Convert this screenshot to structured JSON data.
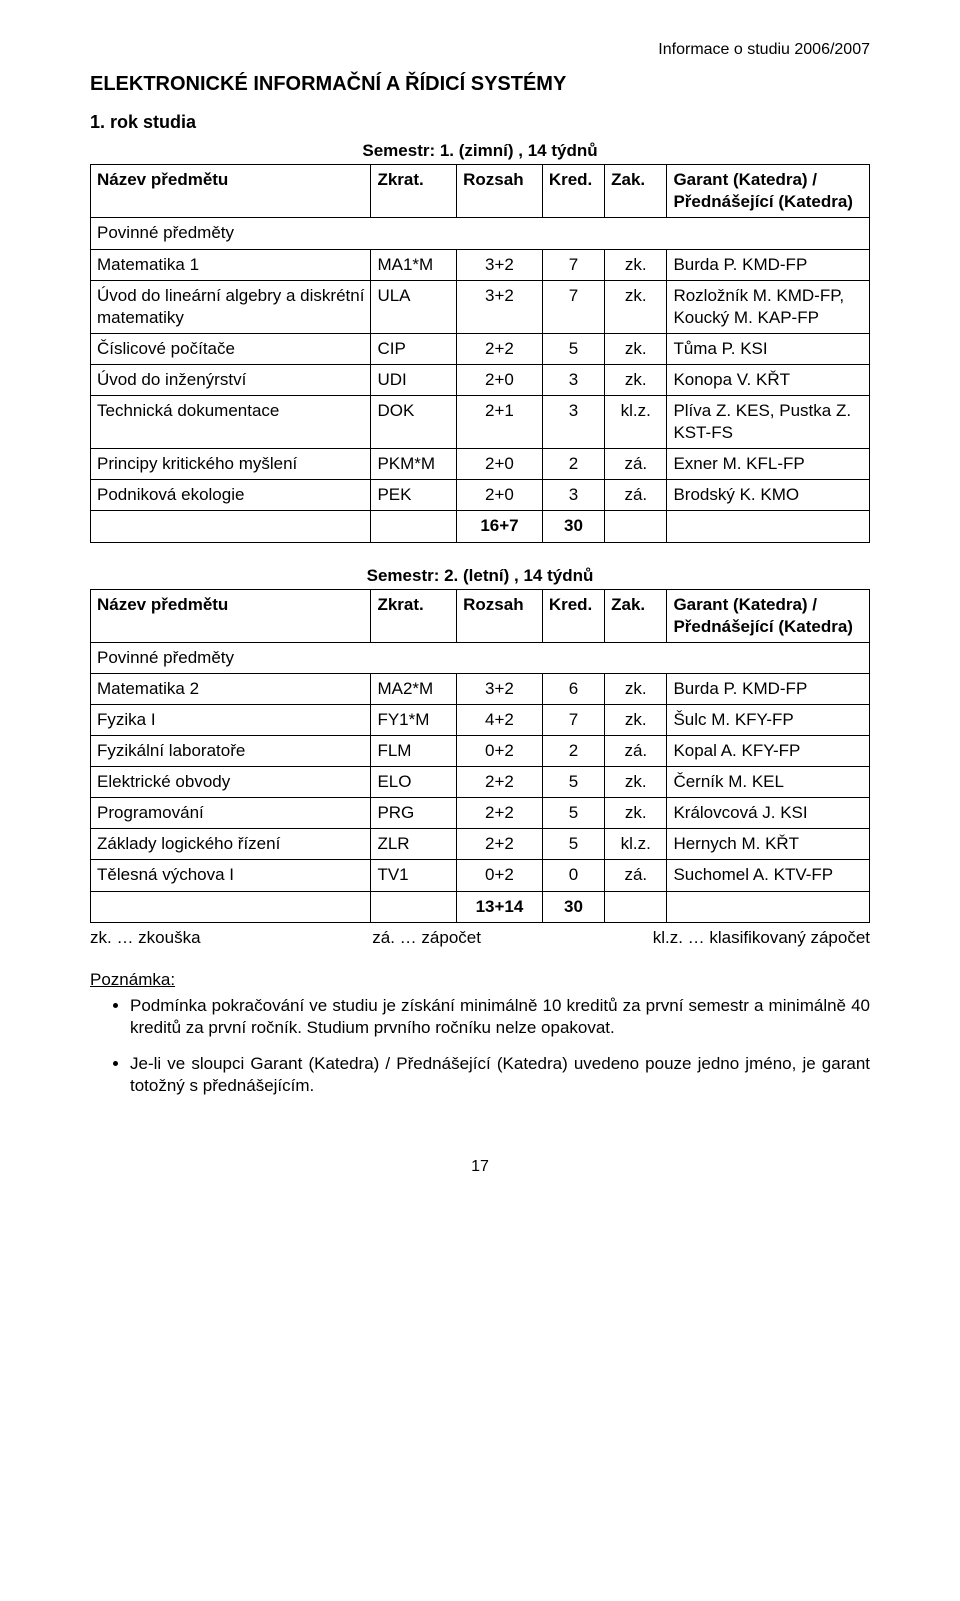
{
  "header_right": "Informace o studiu 2006/2007",
  "doc_title": "ELEKTRONICKÉ INFORMAČNÍ A ŘÍDICÍ SYSTÉMY",
  "year_title": "1. rok studia",
  "table_header": {
    "name": "Název předmětu",
    "abbr": "Zkrat.",
    "range": "Rozsah",
    "kred": "Kred.",
    "zak": "Zak.",
    "gar": "Garant (Katedra) / Přednášející (Katedra)"
  },
  "section_label": "Povinné předměty",
  "semester1": {
    "title": "Semestr: 1. (zimní) , 14 týdnů",
    "rows": [
      {
        "name": "Matematika 1",
        "abbr": "MA1*M",
        "range": "3+2",
        "kred": "7",
        "zak": "zk.",
        "gar": "Burda P. KMD-FP"
      },
      {
        "name": "Úvod do lineární algebry a diskrétní matematiky",
        "abbr": "ULA",
        "range": "3+2",
        "kred": "7",
        "zak": "zk.",
        "gar": "Rozložník M. KMD-FP, Koucký M. KAP-FP"
      },
      {
        "name": "Číslicové počítače",
        "abbr": "CIP",
        "range": "2+2",
        "kred": "5",
        "zak": "zk.",
        "gar": "Tůma P. KSI"
      },
      {
        "name": "Úvod do inženýrství",
        "abbr": "UDI",
        "range": "2+0",
        "kred": "3",
        "zak": "zk.",
        "gar": "Konopa V. KŘT"
      },
      {
        "name": "Technická dokumentace",
        "abbr": "DOK",
        "range": "2+1",
        "kred": "3",
        "zak": "kl.z.",
        "gar": "Plíva Z. KES, Pustka Z. KST-FS"
      },
      {
        "name": "Principy kritického myšlení",
        "abbr": "PKM*M",
        "range": "2+0",
        "kred": "2",
        "zak": "zá.",
        "gar": "Exner M. KFL-FP"
      },
      {
        "name": "Podniková ekologie",
        "abbr": "PEK",
        "range": "2+0",
        "kred": "3",
        "zak": "zá.",
        "gar": "Brodský K. KMO"
      }
    ],
    "total": {
      "range": "16+7",
      "kred": "30"
    }
  },
  "semester2": {
    "title": "Semestr: 2. (letní) , 14 týdnů",
    "rows": [
      {
        "name": "Matematika 2",
        "abbr": "MA2*M",
        "range": "3+2",
        "kred": "6",
        "zak": "zk.",
        "gar": "Burda P. KMD-FP"
      },
      {
        "name": "Fyzika I",
        "abbr": "FY1*M",
        "range": "4+2",
        "kred": "7",
        "zak": "zk.",
        "gar": "Šulc M. KFY-FP"
      },
      {
        "name": "Fyzikální laboratoře",
        "abbr": "FLM",
        "range": "0+2",
        "kred": "2",
        "zak": "zá.",
        "gar": "Kopal A. KFY-FP"
      },
      {
        "name": "Elektrické obvody",
        "abbr": "ELO",
        "range": "2+2",
        "kred": "5",
        "zak": "zk.",
        "gar": "Černík M. KEL"
      },
      {
        "name": "Programování",
        "abbr": "PRG",
        "range": "2+2",
        "kred": "5",
        "zak": "zk.",
        "gar": "Královcová J. KSI"
      },
      {
        "name": "Základy logického řízení",
        "abbr": "ZLR",
        "range": "2+2",
        "kred": "5",
        "zak": "kl.z.",
        "gar": "Hernych M. KŘT"
      },
      {
        "name": "Tělesná výchova I",
        "abbr": "TV1",
        "range": "0+2",
        "kred": "0",
        "zak": "zá.",
        "gar": "Suchomel A. KTV-FP"
      }
    ],
    "total": {
      "range": "13+14",
      "kred": "30"
    }
  },
  "legend": {
    "zk": "zk. … zkouška",
    "za": "zá. … zápočet",
    "klz": "kl.z. … klasifikovaný zápočet"
  },
  "note_title": "Poznámka:",
  "notes": [
    "Podmínka pokračování ve studiu je získání minimálně 10 kreditů za první semestr a minimálně 40 kreditů za první ročník. Studium prvního ročníku nelze opakovat.",
    "Je-li ve sloupci Garant (Katedra) / Přednášející (Katedra) uvedeno pouze jedno jméno, je garant totožný s přednášejícím."
  ],
  "page_number": "17"
}
